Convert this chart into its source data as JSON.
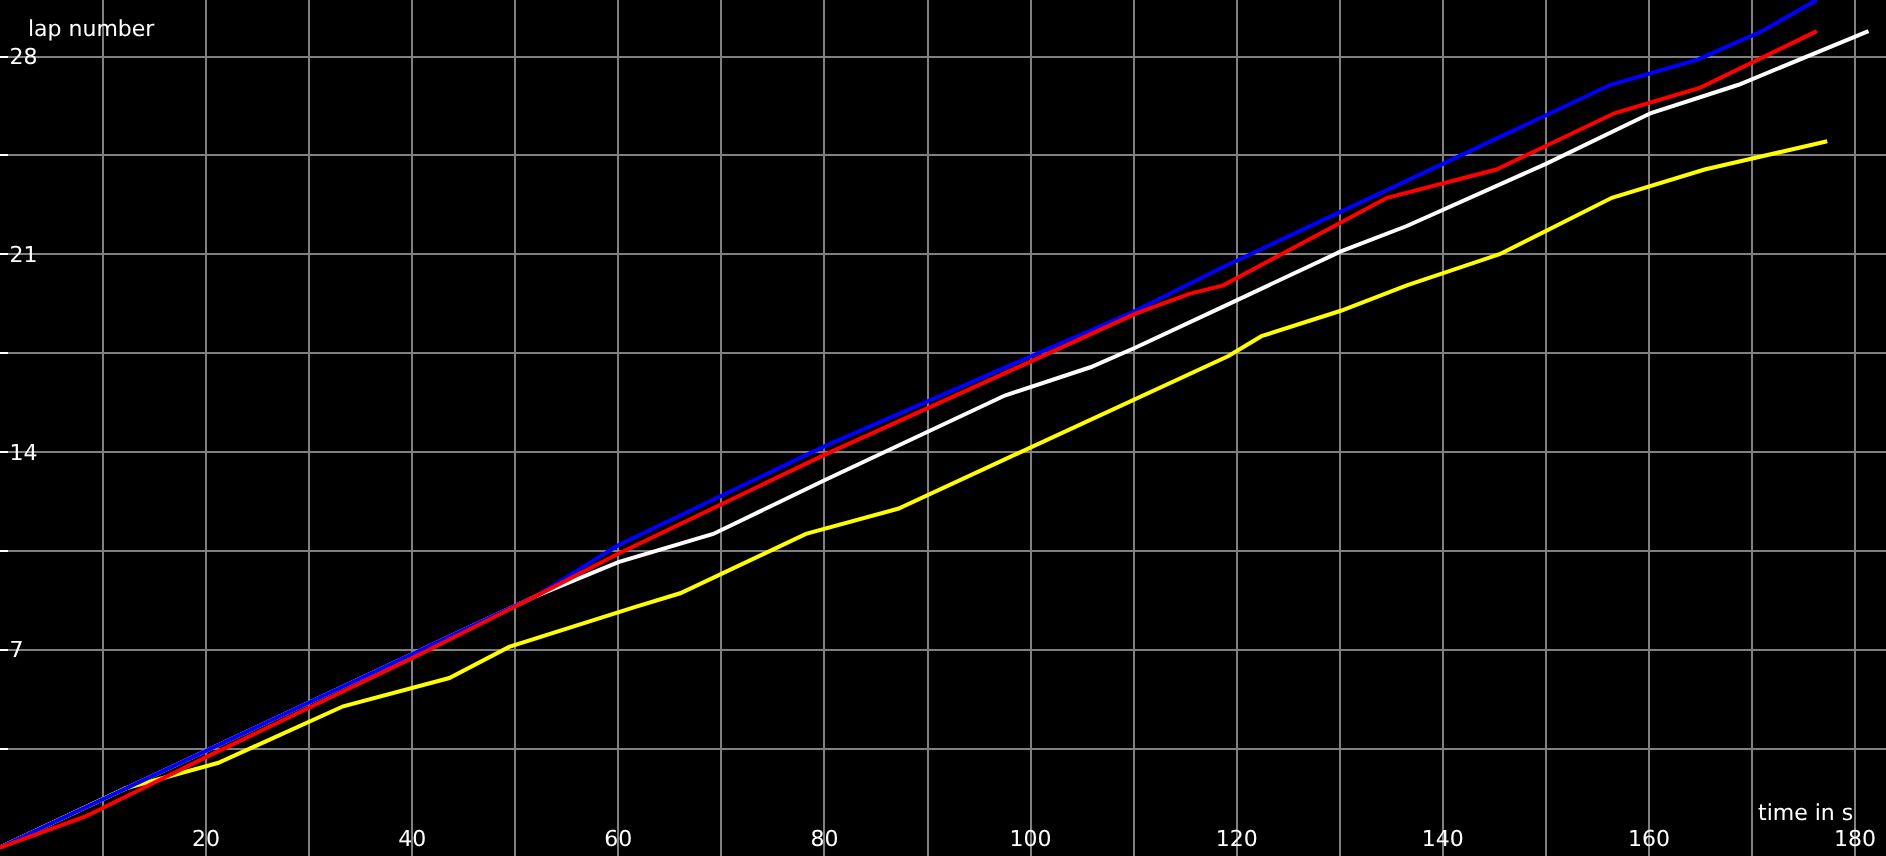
{
  "chart_data": {
    "type": "line",
    "xlabel": "time in s",
    "ylabel": "lap number",
    "xlim": [
      0,
      183
    ],
    "ylim": [
      -0.3,
      30
    ],
    "xticks": [
      {
        "value": 10,
        "label": null
      },
      20,
      {
        "value": 30,
        "label": null
      },
      40,
      {
        "value": 50,
        "label": null
      },
      60,
      {
        "value": 70,
        "label": null
      },
      80,
      {
        "value": 90,
        "label": null
      },
      100,
      {
        "value": 110,
        "label": null
      },
      120,
      {
        "value": 130,
        "label": null
      },
      140,
      {
        "value": 150,
        "label": null
      },
      160,
      {
        "value": 170,
        "label": null
      },
      180
    ],
    "yticks": [
      {
        "value": 3.5,
        "label": null
      },
      7,
      {
        "value": 10.5,
        "label": null
      },
      14,
      {
        "value": 17.5,
        "label": null
      },
      21,
      {
        "value": 24.5,
        "label": null
      },
      28
    ],
    "grid": true,
    "legend": false,
    "marker": "none",
    "line_style": "solid",
    "series": [
      {
        "color": "#ffffff",
        "x": [
          0,
          52,
          60,
          69.2,
          80,
          97.5,
          105.8,
          110.2,
          119,
          130.1,
          136.5,
          150,
          160.2,
          168.7,
          181.3
        ],
        "values": [
          0,
          8.9,
          10.1,
          11.1,
          13.0,
          16.0,
          17.0,
          17.7,
          19.2,
          21.1,
          22.0,
          24.2,
          26.0,
          27.0,
          28.9
        ]
      },
      {
        "color": "#ffff00",
        "x": [
          0,
          12.2,
          21.2,
          33.3,
          43.6,
          49.4,
          61.5,
          66,
          78.2,
          87.2,
          119.2,
          122.4,
          130.1,
          136.5,
          145.5,
          156.4,
          165.4,
          177.3
        ],
        "values": [
          0,
          2.1,
          3.0,
          5.0,
          6.0,
          7.1,
          8.5,
          9.0,
          11.1,
          12.0,
          17.4,
          18.1,
          19.0,
          19.9,
          21.0,
          23.0,
          24.0,
          25.0
        ]
      },
      {
        "color": "#0000ff",
        "x": [
          0,
          52,
          60,
          80,
          110.2,
          119,
          140,
          156.3,
          164.8,
          171,
          176.3
        ],
        "values": [
          0,
          8.9,
          10.7,
          14.2,
          19.0,
          20.6,
          24.2,
          27.0,
          27.9,
          28.9,
          30.0
        ]
      },
      {
        "color": "#ff0000",
        "x": [
          0,
          8.3,
          20,
          40,
          52,
          60,
          80,
          100,
          110.2,
          115.4,
          118.7,
          134.6,
          145.2,
          156.7,
          165,
          176.3
        ],
        "values": [
          0,
          1.1,
          3.2,
          6.7,
          8.9,
          10.4,
          13.9,
          17.2,
          18.9,
          19.6,
          19.9,
          23.0,
          24.0,
          26.0,
          26.9,
          28.9
        ]
      }
    ]
  }
}
